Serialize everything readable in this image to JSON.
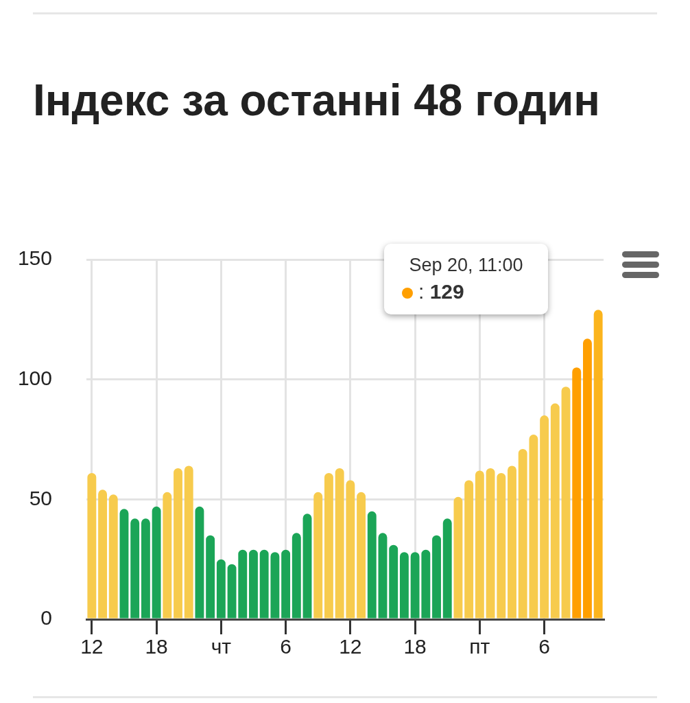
{
  "chart_data": {
    "type": "bar",
    "title": "Індекс за останні 48 годин",
    "categories": [
      "12",
      null,
      null,
      null,
      null,
      null,
      "18",
      null,
      null,
      null,
      null,
      null,
      "чт",
      null,
      null,
      null,
      null,
      null,
      "6",
      null,
      null,
      null,
      null,
      null,
      "12",
      null,
      null,
      null,
      null,
      null,
      "18",
      null,
      null,
      null,
      null,
      null,
      "пт",
      null,
      null,
      null,
      null,
      null,
      "6",
      null,
      null,
      null,
      null,
      null
    ],
    "values": [
      61,
      54,
      52,
      46,
      42,
      42,
      47,
      53,
      63,
      64,
      47,
      35,
      25,
      23,
      29,
      29,
      29,
      28,
      29,
      36,
      44,
      53,
      61,
      63,
      58,
      53,
      45,
      36,
      31,
      28,
      28,
      29,
      35,
      42,
      51,
      58,
      62,
      63,
      61,
      64,
      71,
      77,
      85,
      90,
      97,
      105,
      117,
      129
    ],
    "colors": [
      "#f7cb4d",
      "#f7cb4d",
      "#f7cb4d",
      "#1ba557",
      "#1ba557",
      "#1ba557",
      "#1ba557",
      "#f7cb4d",
      "#f7cb4d",
      "#f7cb4d",
      "#1ba557",
      "#1ba557",
      "#1ba557",
      "#1ba557",
      "#1ba557",
      "#1ba557",
      "#1ba557",
      "#1ba557",
      "#1ba557",
      "#1ba557",
      "#1ba557",
      "#f7cb4d",
      "#f7cb4d",
      "#f7cb4d",
      "#f7cb4d",
      "#f7cb4d",
      "#1ba557",
      "#1ba557",
      "#1ba557",
      "#1ba557",
      "#1ba557",
      "#1ba557",
      "#1ba557",
      "#1ba557",
      "#f7cb4d",
      "#f7cb4d",
      "#f7cb4d",
      "#f7cb4d",
      "#f7cb4d",
      "#f7cb4d",
      "#f7cb4d",
      "#f7cb4d",
      "#f7cb4d",
      "#f7cb4d",
      "#f7cb4d",
      "#ff9f00",
      "#ff9f00",
      "#fbb41d"
    ],
    "ylim": [
      0,
      150
    ],
    "yticks": [
      0,
      50,
      100,
      150
    ],
    "grid": true,
    "legend": false,
    "annotations": [
      "Sep 20, 11:00",
      ": 129"
    ]
  }
}
